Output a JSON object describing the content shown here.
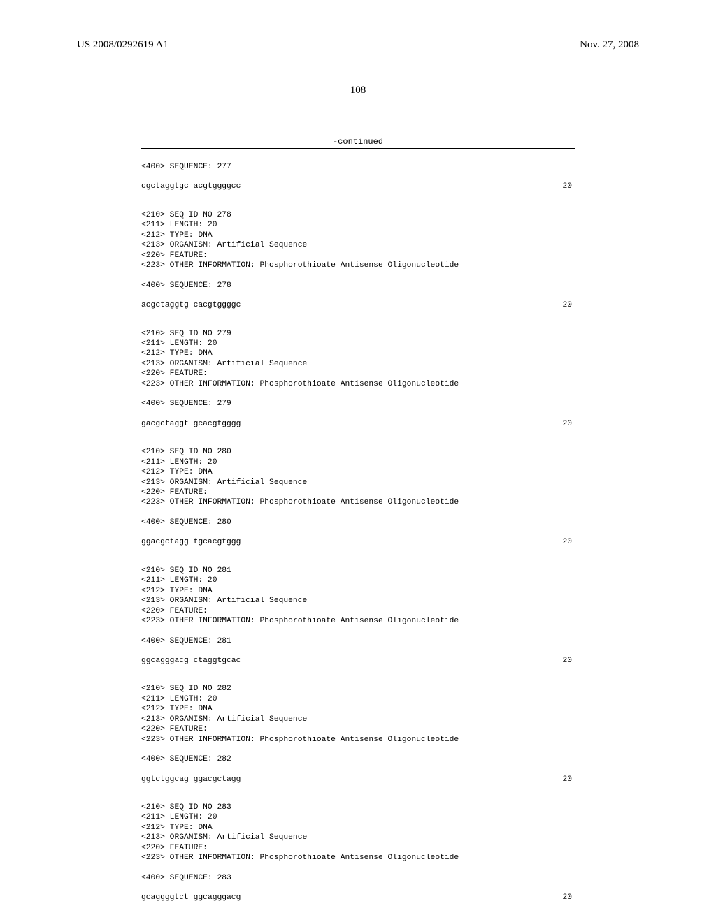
{
  "header": {
    "publication_number": "US 2008/0292619 A1",
    "publication_date": "Nov. 27, 2008",
    "page_number": "108"
  },
  "continued_label": "-continued",
  "entries": [
    {
      "pre": [
        "<400> SEQUENCE: 277"
      ],
      "sequence": "cgctaggtgc acgtggggcc",
      "length": "20",
      "post": []
    },
    {
      "pre": [
        "<210> SEQ ID NO 278",
        "<211> LENGTH: 20",
        "<212> TYPE: DNA",
        "<213> ORGANISM: Artificial Sequence",
        "<220> FEATURE:",
        "<223> OTHER INFORMATION: Phosphorothioate Antisense Oligonucleotide"
      ],
      "seq_header": "<400> SEQUENCE: 278",
      "sequence": "acgctaggtg cacgtggggc",
      "length": "20"
    },
    {
      "pre": [
        "<210> SEQ ID NO 279",
        "<211> LENGTH: 20",
        "<212> TYPE: DNA",
        "<213> ORGANISM: Artificial Sequence",
        "<220> FEATURE:",
        "<223> OTHER INFORMATION: Phosphorothioate Antisense Oligonucleotide"
      ],
      "seq_header": "<400> SEQUENCE: 279",
      "sequence": "gacgctaggt gcacgtgggg",
      "length": "20"
    },
    {
      "pre": [
        "<210> SEQ ID NO 280",
        "<211> LENGTH: 20",
        "<212> TYPE: DNA",
        "<213> ORGANISM: Artificial Sequence",
        "<220> FEATURE:",
        "<223> OTHER INFORMATION: Phosphorothioate Antisense Oligonucleotide"
      ],
      "seq_header": "<400> SEQUENCE: 280",
      "sequence": "ggacgctagg tgcacgtggg",
      "length": "20"
    },
    {
      "pre": [
        "<210> SEQ ID NO 281",
        "<211> LENGTH: 20",
        "<212> TYPE: DNA",
        "<213> ORGANISM: Artificial Sequence",
        "<220> FEATURE:",
        "<223> OTHER INFORMATION: Phosphorothioate Antisense Oligonucleotide"
      ],
      "seq_header": "<400> SEQUENCE: 281",
      "sequence": "ggcagggacg ctaggtgcac",
      "length": "20"
    },
    {
      "pre": [
        "<210> SEQ ID NO 282",
        "<211> LENGTH: 20",
        "<212> TYPE: DNA",
        "<213> ORGANISM: Artificial Sequence",
        "<220> FEATURE:",
        "<223> OTHER INFORMATION: Phosphorothioate Antisense Oligonucleotide"
      ],
      "seq_header": "<400> SEQUENCE: 282",
      "sequence": "ggtctggcag ggacgctagg",
      "length": "20"
    },
    {
      "pre": [
        "<210> SEQ ID NO 283",
        "<211> LENGTH: 20",
        "<212> TYPE: DNA",
        "<213> ORGANISM: Artificial Sequence",
        "<220> FEATURE:",
        "<223> OTHER INFORMATION: Phosphorothioate Antisense Oligonucleotide"
      ],
      "seq_header": "<400> SEQUENCE: 283",
      "sequence": "gcaggggtct ggcagggacg",
      "length": "20"
    }
  ]
}
